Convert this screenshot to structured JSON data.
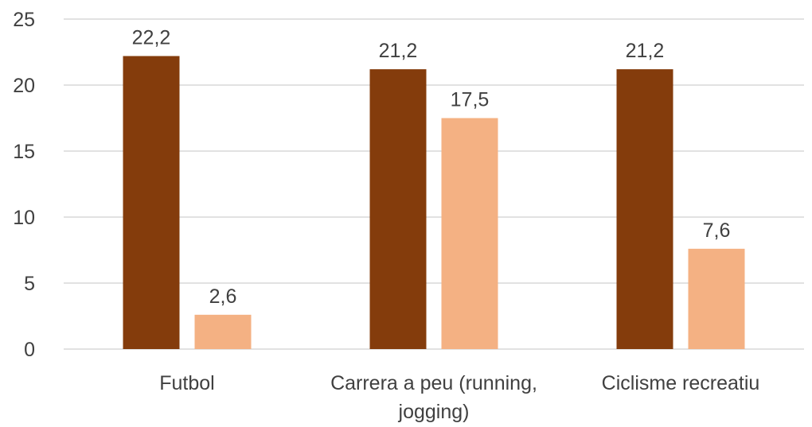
{
  "chart_data": {
    "type": "bar",
    "categories": [
      [
        "Futbol"
      ],
      [
        "Carrera a peu (running,",
        "jogging)"
      ],
      [
        "Ciclisme recreatiu"
      ]
    ],
    "series": [
      {
        "values": [
          22.2,
          21.2,
          21.2
        ],
        "color": "#843c0c"
      },
      {
        "values": [
          2.6,
          17.5,
          7.6
        ],
        "color": "#f4b183"
      }
    ],
    "data_labels": [
      [
        "22,2",
        "21,2",
        "21,2"
      ],
      [
        "2,6",
        "17,5",
        "7,6"
      ]
    ],
    "y_ticks": [
      0,
      5,
      10,
      15,
      20,
      25
    ],
    "ylim": [
      0,
      25
    ],
    "grid": true,
    "legend": "none",
    "title": "",
    "xlabel": "",
    "ylabel": ""
  }
}
